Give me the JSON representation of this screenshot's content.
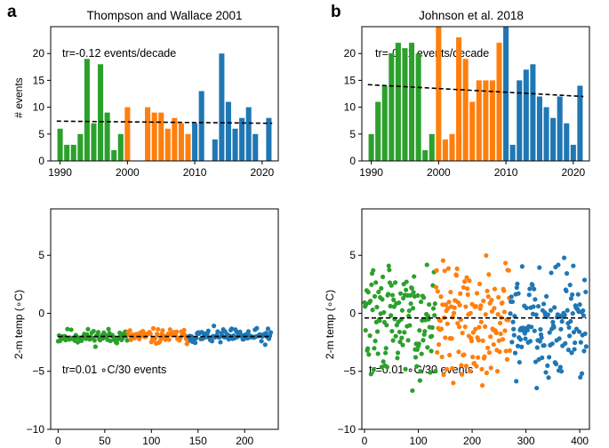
{
  "colors": {
    "green": "#2ca02c",
    "orange": "#ff7f0e",
    "blue": "#1f77b4",
    "trend": "#000000",
    "axis": "#000000"
  },
  "chart_data": [
    {
      "id": "a_top",
      "type": "bar",
      "panel_letter": "a",
      "title": "Thompson and Wallace 2001",
      "ylabel": "# events",
      "xlabel": "",
      "xlim": [
        1988.6,
        2022.4
      ],
      "ylim": [
        0,
        25
      ],
      "xticks": [
        1990,
        2000,
        2010,
        2020
      ],
      "yticks": [
        0,
        5,
        10,
        15,
        20
      ],
      "annotation": "tr=-0.12 events/decade",
      "trend": {
        "x": [
          1989.5,
          2021.5
        ],
        "y": [
          7.4,
          7.0
        ]
      },
      "series": [
        {
          "name": "green",
          "color": "green",
          "x": [
            1990,
            1991,
            1992,
            1993,
            1994,
            1995,
            1996,
            1997,
            1998,
            1999
          ],
          "values": [
            6,
            3,
            3,
            5,
            19,
            7,
            18,
            9,
            2,
            5
          ]
        },
        {
          "name": "orange",
          "color": "orange",
          "x": [
            2000,
            2001,
            2002,
            2003,
            2004,
            2005,
            2006,
            2007,
            2008,
            2009
          ],
          "values": [
            10,
            0,
            0,
            10,
            9,
            9,
            6,
            8,
            7,
            5
          ]
        },
        {
          "name": "blue",
          "color": "blue",
          "x": [
            2010,
            2011,
            2012,
            2013,
            2014,
            2015,
            2016,
            2017,
            2018,
            2019,
            2020,
            2021
          ],
          "values": [
            7,
            13,
            0,
            4,
            20,
            11,
            6,
            8,
            10,
            5,
            0,
            8
          ]
        }
      ]
    },
    {
      "id": "b_top",
      "type": "bar",
      "panel_letter": "b",
      "title": "Johnson et al. 2018",
      "ylabel": "",
      "xlabel": "",
      "xlim": [
        1988.6,
        2022.4
      ],
      "ylim": [
        0,
        25
      ],
      "xticks": [
        1990,
        2000,
        2010,
        2020
      ],
      "yticks": [
        0,
        5,
        10,
        15,
        20
      ],
      "annotation": "tr=-0.71 events/decade",
      "trend": {
        "x": [
          1989.5,
          2021.5
        ],
        "y": [
          14.2,
          12.0
        ]
      },
      "series": [
        {
          "name": "green",
          "color": "green",
          "x": [
            1990,
            1991,
            1992,
            1993,
            1994,
            1995,
            1996,
            1997,
            1998,
            1999
          ],
          "values": [
            5,
            11,
            14,
            20,
            22,
            21,
            22,
            20,
            2,
            5
          ]
        },
        {
          "name": "orange",
          "color": "orange",
          "x": [
            2000,
            2001,
            2002,
            2003,
            2004,
            2005,
            2006,
            2007,
            2008,
            2009
          ],
          "values": [
            25,
            4,
            5,
            23,
            19,
            11,
            15,
            15,
            15,
            22
          ]
        },
        {
          "name": "blue",
          "color": "blue",
          "x": [
            2010,
            2011,
            2012,
            2013,
            2014,
            2015,
            2016,
            2017,
            2018,
            2019,
            2020,
            2021
          ],
          "values": [
            25,
            3,
            15,
            17,
            18,
            12,
            10,
            8,
            12,
            7,
            3,
            14
          ]
        }
      ]
    },
    {
      "id": "a_bottom",
      "type": "scatter",
      "ylabel": "2-m temp (∘C)",
      "xlabel": "",
      "xlim": [
        -8,
        236
      ],
      "ylim": [
        -10,
        9
      ],
      "xticks": [
        0,
        50,
        100,
        150,
        200
      ],
      "yticks": [
        -10,
        -5,
        0,
        5
      ],
      "annotation": "tr=0.01 ∘C/30 events",
      "trend": {
        "x": [
          0,
          228
        ],
        "y": [
          -2.0,
          -2.0
        ]
      },
      "scatter_gen": {
        "segments": [
          [
            0,
            74,
            "green"
          ],
          [
            75,
            139,
            "orange"
          ],
          [
            140,
            228,
            "blue"
          ]
        ],
        "mean": -2.0,
        "spread": 0.32,
        "seed": 11
      }
    },
    {
      "id": "b_bottom",
      "type": "scatter",
      "ylabel": "2-m temp (∘C)",
      "xlabel": "",
      "xlim": [
        -5,
        418
      ],
      "ylim": [
        -10,
        9
      ],
      "xticks": [
        0,
        100,
        200,
        300,
        400
      ],
      "yticks": [
        -10,
        -5,
        0,
        5
      ],
      "annotation": "tr=0.01 ∘C/30 events",
      "trend": {
        "x": [
          0,
          412
        ],
        "y": [
          -0.4,
          -0.4
        ]
      },
      "scatter_gen": {
        "segments": [
          [
            0,
            132,
            "green"
          ],
          [
            133,
            270,
            "orange"
          ],
          [
            271,
            412,
            "blue"
          ]
        ],
        "mean": -0.6,
        "spread": 2.3,
        "seed": 29
      }
    }
  ]
}
